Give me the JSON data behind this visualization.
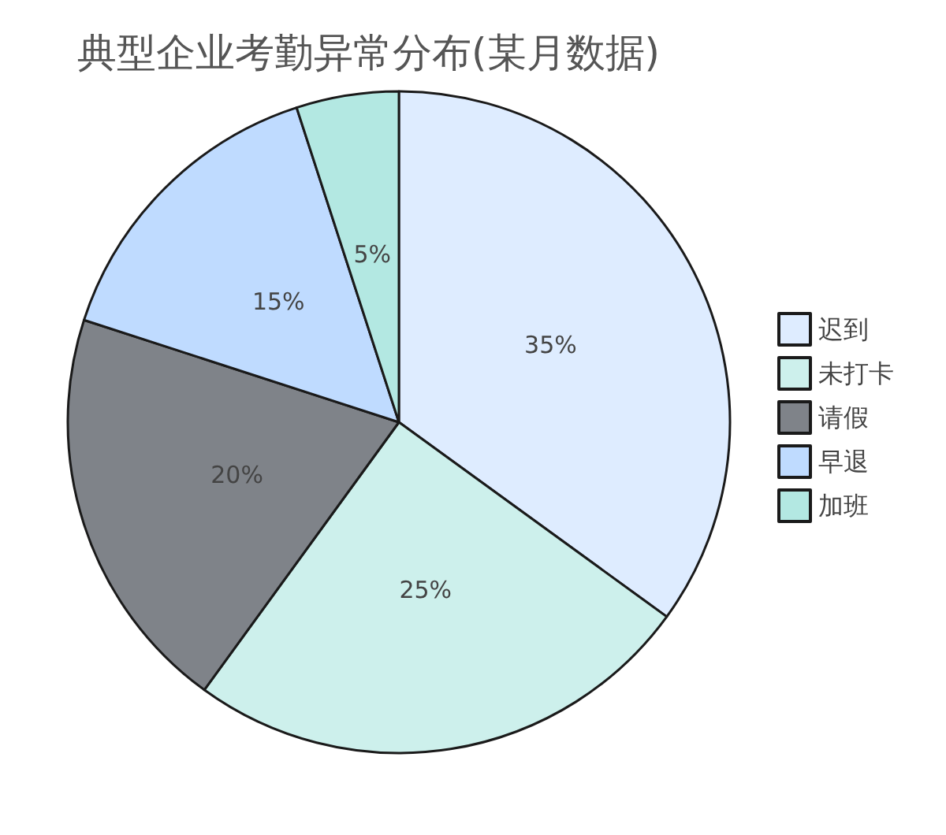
{
  "chart_data": {
    "type": "pie",
    "title": "典型企业考勤异常分布(某月数据)",
    "categories": [
      "迟到",
      "未打卡",
      "请假",
      "早退",
      "加班"
    ],
    "values": [
      35,
      25,
      20,
      15,
      5
    ],
    "colors": [
      "#deecff",
      "#cdf0ec",
      "#7f8389",
      "#bfdbff",
      "#b3e8e2"
    ],
    "value_labels": [
      "35%",
      "25%",
      "20%",
      "15%",
      "5%"
    ],
    "legend": "right"
  }
}
